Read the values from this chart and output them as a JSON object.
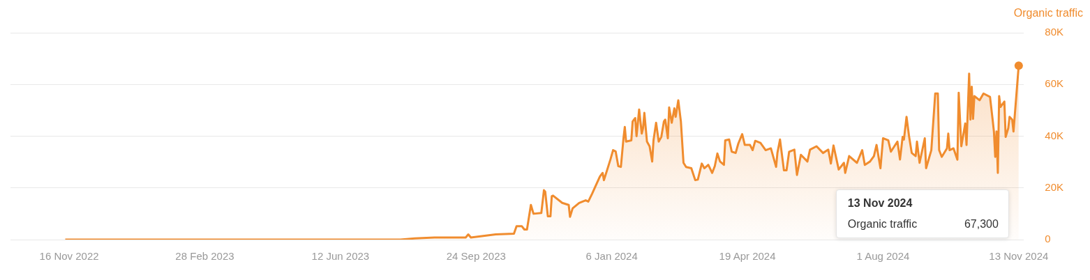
{
  "chart_data": {
    "type": "area",
    "ylabel": "Organic traffic",
    "color": "#f08c2e",
    "grid": "y",
    "xlim": [
      "2022-10-02",
      "2024-11-17"
    ],
    "xticks": [
      {
        "value": "2022-11-16",
        "label": "16 Nov 2022"
      },
      {
        "value": "2023-02-28",
        "label": "28 Feb 2023"
      },
      {
        "value": "2023-06-12",
        "label": "12 Jun 2023"
      },
      {
        "value": "2023-09-24",
        "label": "24 Sep 2023"
      },
      {
        "value": "2024-01-06",
        "label": "6 Jan 2024"
      },
      {
        "value": "2024-04-19",
        "label": "19 Apr 2024"
      },
      {
        "value": "2024-08-01",
        "label": "1 Aug 2024"
      },
      {
        "value": "2024-11-13",
        "label": "13 Nov 2024"
      }
    ],
    "ylim": [
      0,
      80000
    ],
    "yticks": [
      {
        "value": 0,
        "label": "0"
      },
      {
        "value": 20000,
        "label": "20K"
      },
      {
        "value": 40000,
        "label": "40K"
      },
      {
        "value": 60000,
        "label": "60K"
      },
      {
        "value": 80000,
        "label": "80K"
      }
    ],
    "x": [
      "2022-11-13",
      "2023-03-01",
      "2023-06-01",
      "2023-07-28",
      "2023-08-08",
      "2023-08-23",
      "2023-09-16",
      "2023-09-18",
      "2023-09-20",
      "2023-10-09",
      "2023-10-23",
      "2023-10-25",
      "2023-10-29",
      "2023-10-31",
      "2023-11-02",
      "2023-11-05",
      "2023-11-07",
      "2023-11-13",
      "2023-11-15",
      "2023-11-16",
      "2023-11-18",
      "2023-11-20",
      "2023-11-21",
      "2023-11-22",
      "2023-11-29",
      "2023-12-04",
      "2023-12-05",
      "2023-12-07",
      "2023-12-12",
      "2023-12-17",
      "2023-12-19",
      "2023-12-22",
      "2023-12-25",
      "2023-12-28",
      "2023-12-30",
      "2023-12-31",
      "2024-01-05",
      "2024-01-07",
      "2024-01-09",
      "2024-01-11",
      "2024-01-13",
      "2024-01-15",
      "2024-01-16",
      "2024-01-17",
      "2024-01-21",
      "2024-01-22",
      "2024-01-24",
      "2024-01-25",
      "2024-01-27",
      "2024-01-29",
      "2024-01-30",
      "2024-01-31",
      "2024-02-02",
      "2024-02-04",
      "2024-02-06",
      "2024-02-07",
      "2024-02-09",
      "2024-02-11",
      "2024-02-13",
      "2024-02-15",
      "2024-02-16",
      "2024-02-18",
      "2024-02-19",
      "2024-02-21",
      "2024-02-23",
      "2024-02-24",
      "2024-02-26",
      "2024-02-28",
      "2024-03-01",
      "2024-03-03",
      "2024-03-07",
      "2024-03-10",
      "2024-03-12",
      "2024-03-15",
      "2024-03-17",
      "2024-03-20",
      "2024-03-23",
      "2024-03-25",
      "2024-03-27",
      "2024-03-29",
      "2024-04-01",
      "2024-04-02",
      "2024-04-05",
      "2024-04-07",
      "2024-04-10",
      "2024-04-12",
      "2024-04-15",
      "2024-04-17",
      "2024-04-21",
      "2024-04-23",
      "2024-04-25",
      "2024-04-29",
      "2024-05-03",
      "2024-05-07",
      "2024-05-11",
      "2024-05-12",
      "2024-05-14",
      "2024-05-17",
      "2024-05-19",
      "2024-05-21",
      "2024-05-25",
      "2024-05-27",
      "2024-05-30",
      "2024-06-04",
      "2024-06-06",
      "2024-06-11",
      "2024-06-16",
      "2024-06-20",
      "2024-06-22",
      "2024-06-24",
      "2024-06-28",
      "2024-07-02",
      "2024-07-03",
      "2024-07-06",
      "2024-07-12",
      "2024-07-16",
      "2024-07-18",
      "2024-07-22",
      "2024-07-25",
      "2024-07-27",
      "2024-07-30",
      "2024-08-01",
      "2024-08-05",
      "2024-08-07",
      "2024-08-12",
      "2024-08-14",
      "2024-08-16",
      "2024-08-17",
      "2024-08-19",
      "2024-08-21",
      "2024-08-23",
      "2024-08-26",
      "2024-08-27",
      "2024-08-29",
      "2024-09-02",
      "2024-09-03",
      "2024-09-07",
      "2024-09-10",
      "2024-09-12",
      "2024-09-13",
      "2024-09-15",
      "2024-09-19",
      "2024-09-20",
      "2024-09-21",
      "2024-09-24",
      "2024-09-27",
      "2024-09-28",
      "2024-09-30",
      "2024-10-03",
      "2024-10-04",
      "2024-10-06",
      "2024-10-07",
      "2024-10-08",
      "2024-10-09",
      "2024-10-10",
      "2024-10-14",
      "2024-10-17",
      "2024-10-22",
      "2024-10-24",
      "2024-10-25",
      "2024-10-26",
      "2024-10-27",
      "2024-10-28",
      "2024-10-29",
      "2024-10-30",
      "2024-11-02",
      "2024-11-03",
      "2024-11-05",
      "2024-11-06",
      "2024-11-08",
      "2024-11-09",
      "2024-11-13"
    ],
    "values": [
      0,
      0,
      0,
      0,
      500,
      800,
      800,
      2000,
      800,
      2000,
      2300,
      5200,
      5200,
      3900,
      3900,
      13400,
      10000,
      10300,
      19100,
      18500,
      9000,
      9000,
      16800,
      17000,
      14200,
      13400,
      8800,
      12100,
      14200,
      15200,
      14700,
      17800,
      21200,
      24500,
      25800,
      23000,
      31000,
      34600,
      34100,
      28400,
      28100,
      39200,
      43600,
      37900,
      38400,
      45700,
      47000,
      40000,
      50300,
      41000,
      43100,
      49000,
      37900,
      36100,
      30200,
      38400,
      45200,
      37900,
      39700,
      45700,
      46400,
      39200,
      51100,
      45200,
      50800,
      47500,
      53900,
      45700,
      29700,
      28100,
      27600,
      23000,
      23200,
      29400,
      27600,
      28900,
      25800,
      28400,
      33300,
      30200,
      28900,
      38400,
      38700,
      34000,
      33500,
      37100,
      40800,
      36600,
      36600,
      34600,
      38200,
      37400,
      34600,
      35300,
      28100,
      33500,
      38700,
      26800,
      26800,
      34000,
      34800,
      25000,
      32800,
      30200,
      34800,
      36100,
      33500,
      34800,
      29400,
      36400,
      27100,
      29700,
      25800,
      32300,
      29700,
      34600,
      28900,
      30200,
      32300,
      36600,
      27600,
      39200,
      38400,
      34000,
      37900,
      31000,
      39700,
      38700,
      47500,
      39700,
      33500,
      32300,
      37900,
      29700,
      39200,
      27600,
      34600,
      56500,
      56500,
      34600,
      32000,
      35300,
      41000,
      34600,
      35300,
      30900,
      56800,
      36100,
      44900,
      36600,
      64200,
      46400,
      59100,
      46700,
      55500,
      53900,
      56500,
      55200,
      46400,
      41800,
      32000,
      41800,
      25800,
      55500,
      51300,
      53400,
      39700,
      43100,
      47500,
      46400,
      41800,
      67300
    ],
    "annotations": [
      "13 Nov 2024",
      "Organic traffic 67,300"
    ]
  }
}
